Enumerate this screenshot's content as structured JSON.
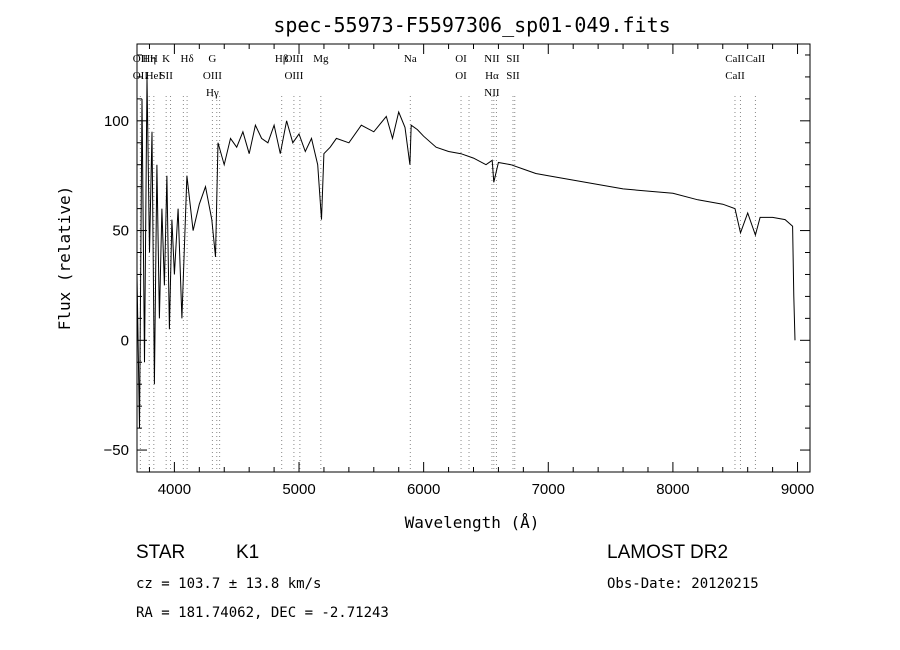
{
  "chart_data": {
    "type": "line",
    "title": "spec-55973-F5597306_sp01-049.fits",
    "xlabel": "Wavelength (Å)",
    "ylabel": "Flux (relative)",
    "xlim": [
      3700,
      9100
    ],
    "ylim": [
      -60,
      135
    ],
    "xticks": [
      "4000",
      "5000",
      "6000",
      "7000",
      "8000",
      "9000"
    ],
    "yticks": [
      "−50",
      "0",
      "50",
      "100"
    ],
    "grid": false,
    "series": [
      {
        "x": [
          3700,
          3720,
          3740,
          3760,
          3780,
          3800,
          3820,
          3840,
          3860,
          3880,
          3900,
          3920,
          3940,
          3960,
          3980,
          4000,
          4030,
          4060,
          4100,
          4150,
          4200,
          4250,
          4300,
          4330,
          4350,
          4400,
          4450,
          4500,
          4550,
          4600,
          4650,
          4700,
          4750,
          4800,
          4850,
          4900,
          4950,
          5000,
          5050,
          5100,
          5150,
          5180,
          5200,
          5250,
          5300,
          5400,
          5500,
          5600,
          5700,
          5750,
          5800,
          5850,
          5890,
          5900,
          5950,
          6000,
          6100,
          6200,
          6300,
          6400,
          6500,
          6550,
          6563,
          6600,
          6700,
          6800,
          6900,
          7000,
          7200,
          7400,
          7600,
          7800,
          8000,
          8200,
          8400,
          8498,
          8542,
          8600,
          8662,
          8700,
          8800,
          8900,
          8960,
          8970,
          8980
        ],
        "y": [
          30,
          -40,
          110,
          -10,
          120,
          40,
          95,
          -20,
          80,
          10,
          60,
          25,
          75,
          5,
          55,
          30,
          60,
          10,
          75,
          50,
          62,
          70,
          55,
          38,
          90,
          80,
          92,
          88,
          95,
          85,
          98,
          92,
          90,
          98,
          85,
          100,
          90,
          94,
          86,
          92,
          80,
          55,
          85,
          88,
          92,
          90,
          98,
          95,
          102,
          92,
          104,
          97,
          80,
          98,
          96,
          93,
          88,
          86,
          85,
          83,
          80,
          82,
          72,
          81,
          80,
          78,
          76,
          75,
          73,
          71,
          69,
          68,
          67,
          64,
          62,
          60,
          49,
          58,
          48,
          56,
          56,
          55,
          52,
          20,
          0
        ]
      }
    ],
    "lines": [
      {
        "wave": 3727,
        "labels": [
          "OII",
          "OII"
        ]
      },
      {
        "wave": 3798,
        "labels": [
          "Hη"
        ]
      },
      {
        "wave": 3835,
        "labels": [
          "H",
          "HeI"
        ]
      },
      {
        "wave": 3934,
        "labels": [
          "K",
          "SII"
        ]
      },
      {
        "wave": 3969,
        "labels": []
      },
      {
        "wave": 4072,
        "labels": []
      },
      {
        "wave": 4102,
        "labels": [
          "Hδ"
        ]
      },
      {
        "wave": 4305,
        "labels": [
          "G",
          "OIII",
          "Hγ"
        ]
      },
      {
        "wave": 4340,
        "labels": []
      },
      {
        "wave": 4363,
        "labels": []
      },
      {
        "wave": 4861,
        "labels": [
          "Hβ"
        ]
      },
      {
        "wave": 4959,
        "labels": [
          "OIII",
          "OIII"
        ]
      },
      {
        "wave": 5007,
        "labels": []
      },
      {
        "wave": 5175,
        "labels": [
          "Mg"
        ]
      },
      {
        "wave": 5893,
        "labels": [
          "Na"
        ]
      },
      {
        "wave": 6300,
        "labels": [
          "OI",
          "OI"
        ]
      },
      {
        "wave": 6364,
        "labels": []
      },
      {
        "wave": 6548,
        "labels": [
          "NII",
          "Hα",
          "NII"
        ]
      },
      {
        "wave": 6563,
        "labels": []
      },
      {
        "wave": 6584,
        "labels": []
      },
      {
        "wave": 6717,
        "labels": [
          "SII",
          "SII"
        ]
      },
      {
        "wave": 6731,
        "labels": []
      },
      {
        "wave": 8498,
        "labels": [
          "CaII",
          "CaII"
        ]
      },
      {
        "wave": 8542,
        "labels": []
      },
      {
        "wave": 8662,
        "labels": [
          "CaII"
        ]
      }
    ]
  },
  "info": {
    "object_class": "STAR",
    "subclass": "K1",
    "survey": "LAMOST DR2",
    "cz": "cz = 103.7 ± 13.8 km/s",
    "obs_date": "Obs-Date: 20120215",
    "coords": "RA = 181.74062, DEC =  -2.71243"
  },
  "colors": {
    "spectrum": "#000000",
    "line_markers": "#888888",
    "background": "#ffffff"
  }
}
